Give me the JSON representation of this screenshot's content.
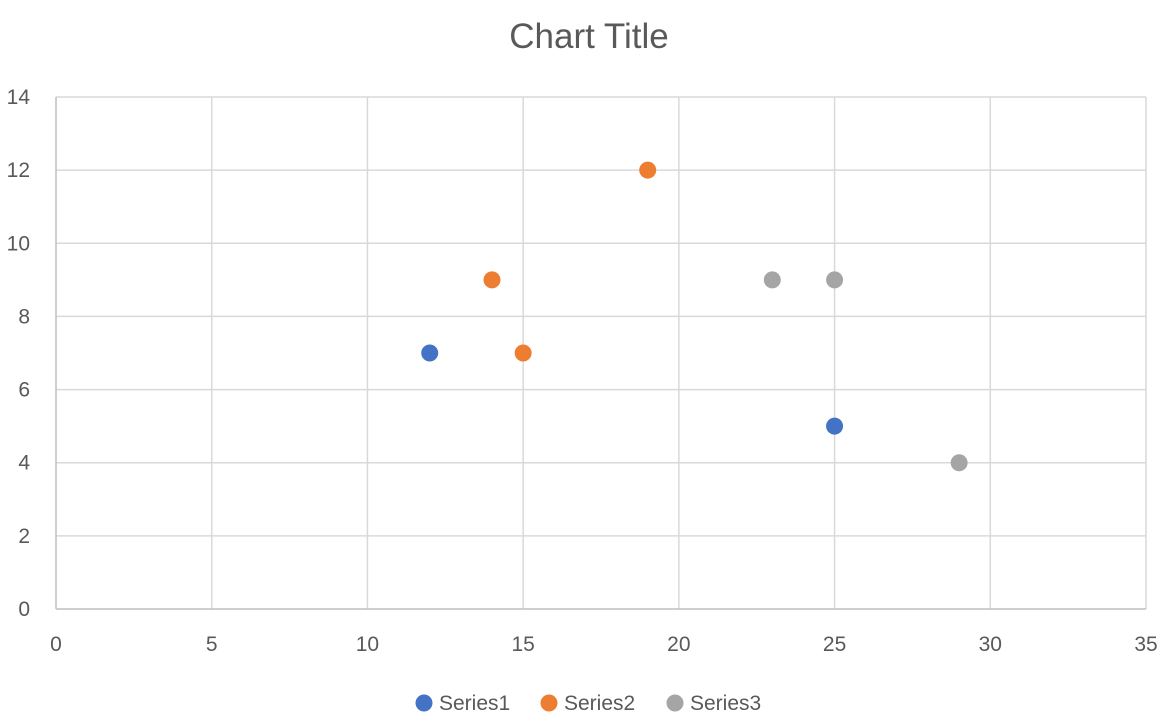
{
  "chart_data": {
    "type": "scatter",
    "title": "Chart Title",
    "xlabel": "",
    "ylabel": "",
    "xlim": [
      0,
      35
    ],
    "ylim": [
      0,
      14
    ],
    "x_ticks": [
      0,
      5,
      10,
      15,
      20,
      25,
      30,
      35
    ],
    "y_ticks": [
      0,
      2,
      4,
      6,
      8,
      10,
      12,
      14
    ],
    "grid": true,
    "legend_position": "bottom",
    "series": [
      {
        "name": "Series1",
        "color": "#4472C4",
        "points": [
          {
            "x": 12,
            "y": 7
          },
          {
            "x": 25,
            "y": 5
          }
        ]
      },
      {
        "name": "Series2",
        "color": "#ED7D31",
        "points": [
          {
            "x": 14,
            "y": 9
          },
          {
            "x": 15,
            "y": 7
          },
          {
            "x": 19,
            "y": 12
          }
        ]
      },
      {
        "name": "Series3",
        "color": "#A5A5A5",
        "points": [
          {
            "x": 23,
            "y": 9
          },
          {
            "x": 25,
            "y": 9
          },
          {
            "x": 29,
            "y": 4
          }
        ]
      }
    ]
  },
  "colors": {
    "gridline": "#D9D9D9",
    "axis_line": "#BFBFBF",
    "text": "#595959"
  }
}
